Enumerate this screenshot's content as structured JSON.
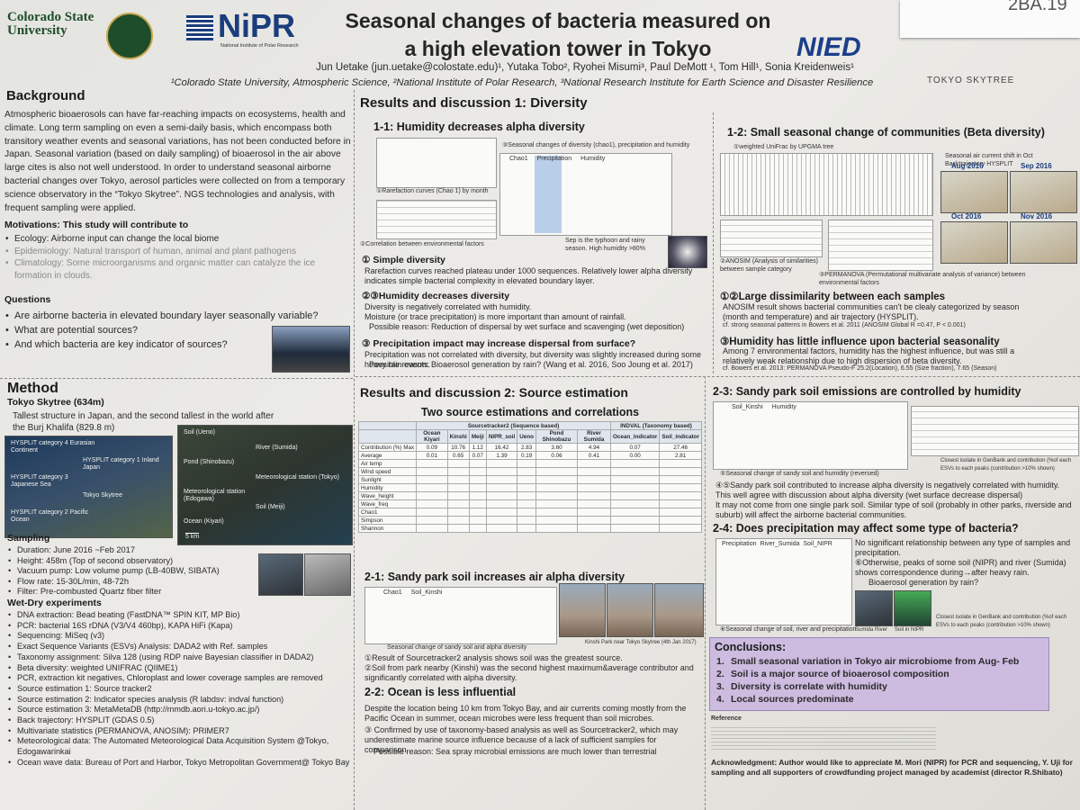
{
  "badge": "2BA.19",
  "logos": {
    "csu": "Colorado State University",
    "nipr": "NiPR",
    "nipr_sub": "National Institute of Polar Research",
    "nied": "NIED",
    "skytree": "TOKYO SKYTREE"
  },
  "header": {
    "title_line1": "Seasonal changes of bacteria measured on",
    "title_line2": "a high elevation tower in Tokyo",
    "authors": "Jun Uetake (jun.uetake@colostate.edu)¹, Yutaka Tobo², Ryohei Misumi³, Paul DeMott ¹, Tom Hill¹, Sonia Kreidenweis¹",
    "affiliations": "¹Colorado State University, Atmospheric Science, ²National Institute of Polar Research, ³National Research Institute for Earth Science and Disaster Resilience"
  },
  "background": {
    "heading": "Background",
    "text": "Atmospheric bioaerosols can have far-reaching impacts on ecosystems, health and climate. Long term sampling on even a semi-daily basis, which encompass both transitory weather events and seasonal variations, has not been conducted before in Japan. Seasonal variation (based on daily sampling) of bioaerosol in the air above large cites is also not well understood. In order to understand seasonal airborne bacterial changes over Tokyo, aerosol particles were collected on from a temporary science observatory in the “Tokyo Skytree”. NGS technologies and analysis, with frequent sampling were applied.",
    "motivations_heading": "Motivations: This study will contribute to",
    "motivations": [
      "Ecology: Airborne input can change the local biome",
      "Epidemiology: Natural transport of human, animal and plant pathogens",
      "Climatology: Some microorganisms and organic matter can catalyze the ice formation in clouds."
    ],
    "questions_heading": "Questions",
    "questions": [
      "Are airborne bacteria in elevated boundary layer seasonally variable?",
      "What are potential sources?",
      "And which bacteria are key indicator of sources?"
    ]
  },
  "method": {
    "heading": "Method",
    "site": "Tokyo Skytree (634m)",
    "site_text": "Tallest structure in Japan, and the second tallest in the world after the Burj Khalifa (829.8 m)",
    "map_left": [
      "HYSPLIT category 4 Eurasian Continent",
      "HYSPLIT category 1 Inland Japan",
      "HYSPLIT category 3 Japanese Sea",
      "Tokyo Skytree",
      "HYSPLIT category 2 Pacific Ocean"
    ],
    "map_right": [
      "Soil (Ueno)",
      "River (Sumida)",
      "Pond (Shinobazu)",
      "Meteorological station (Tokyo)",
      "Meteorological station (Edogawa)",
      "Soil (Meiji)",
      "Ocean (Kiyari)"
    ],
    "map_scale": "5 km",
    "sampling_heading": "Sampling",
    "sampling": [
      "Duration: June 2016 ~Feb 2017",
      "Height: 458m (Top of second observatory)",
      "Vacuum pump: Low volume pump (LB-40BW, SIBATA)",
      "Flow rate: 15-30L/min, 48-72h",
      "Filter: Pre-combusted Quartz fiber filter"
    ],
    "wetdry_heading": "Wet-Dry experiments",
    "wetdry": [
      "DNA extraction: Bead beating (FastDNA™ SPIN KIT, MP Bio)",
      "PCR: bacterial 16S rDNA (V3/V4 460bp), KAPA HiFi (Kapa)",
      "Sequencing: MiSeq (v3)",
      "Exact Sequence Variants (ESVs) Analysis: DADA2 with Ref. samples",
      "Taxonomy assignment: Silva 128 (using RDP naive Bayesian classifier in DADA2)",
      "Beta diversity: weighted UNIFRAC (QIIME1)",
      "PCR, extraction kit negatives, Chloroplast and lower coverage samples are removed",
      "Source estimation 1: Source tracker2",
      "Source estimation 2: Indicator species analysis (R labdsv: indval function)",
      "Source estimation 3: MetaMetaDB (http://mmdb.aori.u-tokyo.ac.jp/)",
      "Back trajectory: HYSPLIT (GDAS 0.5)",
      "Multivariate statistics (PERMANOVA, ANOSIM): PRIMER7",
      "Meteorological data: The Automated Meteorological Data Acquisition System @Tokyo, Edogawarinkai",
      "Ocean wave data: Bureau of Port and Harbor, Tokyo Metropolitan Government@ Tokyo Bay"
    ]
  },
  "results1": {
    "heading": "Results and discussion 1: Diversity",
    "s11_heading": "1-1: Humidity decreases alpha diversity",
    "fig1_caption": "①Rarefaction curves (Chao 1) by month",
    "fig2_caption": "②Correlation between environmental factors",
    "fig3_caption": "③Seasonal changes of diversity (chao1), precipitation and humidity",
    "fig3_legend": [
      "Chao1",
      "Precipitation",
      "Humidity"
    ],
    "fig3_note": "Sep is the typhoon and rainy season. High humidity >80%",
    "p1_heading": "① Simple diversity",
    "p1_text": "Rarefaction curves reached plateau under 1000 sequences. Relatively lower alpha diversity indicates simple bacterial complexity in elevated boundary layer.",
    "p2_heading": "②③Humidity decreases diversity",
    "p2_text": "Diversity is negatively correlated with humidity.",
    "p2_text2": "Moisture (or trace precipitation) is more important than amount of rainfall.",
    "p2_reason": "Possible reason: Reduction of dispersal by wet surface and scavenging (wet deposition)",
    "p3_heading": "③ Precipitation impact may increase dispersal from surface?",
    "p3_text": "Precipitation was not correlated with diversity, but diversity was slightly increased during some heavy rain events.",
    "p3_reason": "Possible reason: Bioaerosol generation by rain? (Wang et al. 2016, Soo Joung et al. 2017)",
    "s12_heading": "1-2: Small seasonal change of communities (Beta diversity)",
    "f12_caption": "①weighted UniFrac by UPGMA tree",
    "shift": "Seasonal air current shift in Oct",
    "backtraj": "Backtrajectory HYSPLIT",
    "months": [
      "Aug 2016",
      "Sep 2016",
      "Oct 2016",
      "Nov 2016"
    ],
    "anosim_caption": "②ANOSIM (Analysis of similarities) between sample category",
    "permanova_caption": "③PERMANOVA (Permutational multivariate analysis of variance) between environmental factors",
    "q1_heading": "①②Large dissimilarity between each samples",
    "q1_text": "ANOSIM result shows bacterial communities can't be clealy categorized by season (month and temperature) and air trajectory (HYSPLIT).",
    "q1_cf": "cf. strong seasonal patterns in Bowers et al. 2011 (ANOSIM Global R =0.47, P < 0.001)",
    "q2_heading": "③Humidity has little influence upon bacterial seasonality",
    "q2_text": "Among 7 environmental factors, humidity has the highest influence, but was still a relatively weak relationship due to high dispersion of beta diversity.",
    "q2_cf": "cf. Bowers et al. 2013: PERMANOVA Pseudo-F 25.2(Location), 6.55 (Size fraction), 7.65 (Season)"
  },
  "results2": {
    "heading": "Results and discussion 2: Source estimation",
    "subheading": "Two source estimations and correlations",
    "table": {
      "group_headers": [
        "Sourcetracker2 (Sequence based)",
        "INDVAL (Taxonomy based)"
      ],
      "columns": [
        "Ocean Kiyari",
        "Kinshi",
        "Meiji",
        "NIPR_soil",
        "Ueno",
        "Pond Shinobazu",
        "River Sumida",
        "Ocean_indicator",
        "Soil_indicator"
      ],
      "rows": [
        {
          "label": "Contribution (%) Max",
          "cells": [
            "0.09",
            "10.76",
            "1.12",
            "16.42",
            "2.83",
            "3.60",
            "4.94",
            "0.07",
            "27.46"
          ]
        },
        {
          "label": "Average",
          "cells": [
            "0.01",
            "0.65",
            "0.07",
            "1.39",
            "0.19",
            "0.06",
            "0.41",
            "0.00",
            "2.81"
          ]
        },
        {
          "label": "Air temp"
        },
        {
          "label": "Wind speed"
        },
        {
          "label": "Sunlight"
        },
        {
          "label": "Humidity"
        },
        {
          "label": "Wave_height"
        },
        {
          "label": "Wave_freq"
        },
        {
          "label": "Chao1"
        },
        {
          "label": "Simpson"
        },
        {
          "label": "Shannon"
        }
      ]
    },
    "s21_heading": "2-1: Sandy park soil increases air alpha diversity",
    "s21_legend": [
      "Chao1",
      "Soil_Kinshi"
    ],
    "s21_fig_caption": "Seasonal change of sandy soil and alpha diversity",
    "s21_photo_caption": "Kinshi Park near Tokyo Skytree (4th Jan 2017)",
    "s21_text1": "①Result of Sourcetracker2 analysis shows soil was the greatest source.",
    "s21_text2": "②Soil from park nearby (Kinshi) was the second highest maximum&average contributor and significantly correlated with alpha diversity.",
    "s22_heading": "2-2: Ocean is less influential",
    "s22_text1": "Despite the location being 10 km from Tokyo Bay, and air currents coming mostly from the Pacific Ocean in summer, ocean microbes were less frequent than soil microbes.",
    "s22_text2": "③ Confirmed by use of taxonomy-based analysis as well as Sourcetracker2, which may underestimate marine source influence because of a lack of sufficient samples for comparison.",
    "s22_reason": "Possible reason: Sea spray microbial emissions are much lower than terrestrial",
    "s23_heading": "2-3: Sandy park soil emissions are controlled by humidity",
    "s23_legend": [
      "Soil_Kinshi",
      "Humidity"
    ],
    "s23_fig_caption": "⑤Seasonal change of sandy soil and humidity (reversed)",
    "s23_table_caption": "Closest isolate in GenBank and contribution (%of each ESVs to each peaks (contribution >10% shown)",
    "s23_text1": "④⑤Sandy park soil contributed to increase alpha diversity is negatively correlated with humidity.",
    "s23_text2": "This well agree with discussion about alpha diversity (wet surface decrease dispersal)",
    "s23_text3": "It may not come from one single park soil. Similar type of soil (probably in other parks, riverside and suburb) will affect the airborne bacterial communities.",
    "s24_heading": "2-4: Does precipitation may affect some type of bacteria?",
    "s24_legend": [
      "Precipitation",
      "River_Sumida",
      "Soil_NIPR"
    ],
    "s24_text1": "No significant relationship between any type of samples and precipitation.",
    "s24_text2": "⑥Otherwise, peaks of some soil (NIPR) and river (Sumida) shows correspondence during→after heavy rain.",
    "s24_text3": "Bioaerosol generation by rain?",
    "s24_photos": [
      "Sumida River",
      "Soil in NIPR"
    ],
    "s24_table_caption": "Closest isolate in GenBank and contribution (%of each ESVs to each peaks (contribution >10% shown)",
    "s24_fig_caption": "⑥Seasonal change of soil, river and precipitation"
  },
  "conclusions": {
    "heading": "Conclusions:",
    "items": [
      "Small seasonal variation in Tokyo air microbiome from Aug- Feb",
      "Soil is a major source of bioaerosol composition",
      "Diversity is correlate with humidity",
      "Local sources predominate"
    ]
  },
  "reference_heading": "Reference",
  "acknowledgment": "Acknowledgment: Author would like to appreciate M. Mori (NIPR) for PCR and sequencing, Y. Uji for sampling and all supporters of crowdfunding project managed by academist (director R.Shibato)"
}
